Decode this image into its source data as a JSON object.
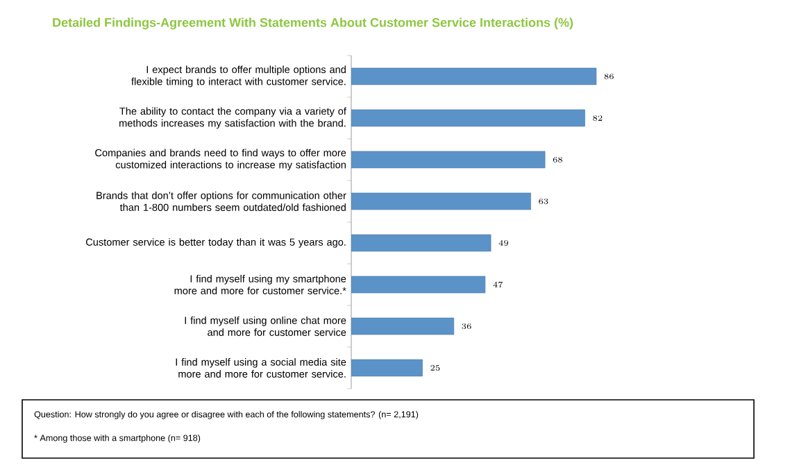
{
  "chart_data": {
    "type": "bar",
    "orientation": "horizontal",
    "title": "Detailed Findings-Agreement With Statements About Customer Service Interactions (%)",
    "categories": [
      "I expect brands to offer multiple options and flexible timing to interact with customer service.",
      "The ability to contact the company via a variety of methods increases my satisfaction with the brand.",
      "Companies and brands need to find ways to offer more customized interactions to increase my satisfaction",
      "Brands that don’t offer options for communication other than 1-800 numbers seem outdated/old fashioned",
      "Customer service is better today than it was 5 years ago.",
      "I find myself using my smartphone more and more for customer service.*",
      "I find myself using online chat more and more for customer service",
      "I find myself using a social media site more and more for customer service."
    ],
    "values": [
      86,
      82,
      68,
      63,
      49,
      47,
      36,
      25
    ],
    "color": "#5b93c9",
    "data_labels": true,
    "annotations": [
      "Question: How strongly do you agree or disagree with each of the following statements?    (n= 2,191)",
      "* Among those with a smartphone (n= 918)"
    ]
  }
}
